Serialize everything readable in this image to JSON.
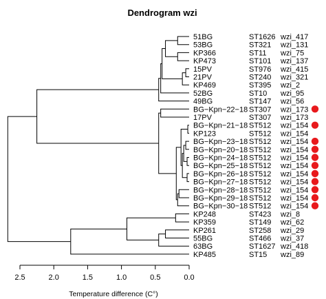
{
  "chart_data": {
    "type": "dendrogram",
    "title": "Dendrogram wzi",
    "xlabel": "Temperature difference (C°)",
    "xlim": [
      2.5,
      0.0
    ],
    "x_ticks": [
      "2.5",
      "2.0",
      "1.5",
      "1.0",
      "0.5",
      "0.0"
    ],
    "x_tick_values": [
      2.5,
      2.0,
      1.5,
      1.0,
      0.5,
      0.0
    ],
    "marker_color": "#e8191c",
    "leaves": [
      {
        "name": "51BG",
        "st": "ST1626",
        "wzi": "wzi_417",
        "marked": false
      },
      {
        "name": "53BG",
        "st": "ST321",
        "wzi": "wzi_131",
        "marked": false
      },
      {
        "name": "KP366",
        "st": "ST11",
        "wzi": "wzi_75",
        "marked": false
      },
      {
        "name": "KP473",
        "st": "ST101",
        "wzi": "wzi_137",
        "marked": false
      },
      {
        "name": "15PV",
        "st": "ST976",
        "wzi": "wzi_415",
        "marked": false
      },
      {
        "name": "21PV",
        "st": "ST240",
        "wzi": "wzi_321",
        "marked": false
      },
      {
        "name": "KP469",
        "st": "ST395",
        "wzi": "wzi_2",
        "marked": false
      },
      {
        "name": "52BG",
        "st": "ST10",
        "wzi": "wzi_95",
        "marked": false
      },
      {
        "name": "49BG",
        "st": "ST147",
        "wzi": "wzi_56",
        "marked": false
      },
      {
        "name": "BG−Kpn−22−18",
        "st": "ST307",
        "wzi": "wzi_173",
        "marked": true
      },
      {
        "name": "17PV",
        "st": "ST307",
        "wzi": "wzi_173",
        "marked": false
      },
      {
        "name": "BG−Kpn−21−18",
        "st": "ST512",
        "wzi": "wzi_154",
        "marked": true
      },
      {
        "name": "KP123",
        "st": "ST512",
        "wzi": "wzi_154",
        "marked": false
      },
      {
        "name": "BG−Kpn−23−18",
        "st": "ST512",
        "wzi": "wzi_154",
        "marked": true
      },
      {
        "name": "BG−Kpn−20−18",
        "st": "ST512",
        "wzi": "wzi_154",
        "marked": true
      },
      {
        "name": "BG−Kpn−24−18",
        "st": "ST512",
        "wzi": "wzi_154",
        "marked": true
      },
      {
        "name": "BG−Kpn−25−18",
        "st": "ST512",
        "wzi": "wzi_154",
        "marked": true
      },
      {
        "name": "BG−Kpn−26−18",
        "st": "ST512",
        "wzi": "wzi_154",
        "marked": true
      },
      {
        "name": "BG−Kpn−27−18",
        "st": "ST512",
        "wzi": "wzi_154",
        "marked": true
      },
      {
        "name": "BG−Kpn−28−18",
        "st": "ST512",
        "wzi": "wzi_154",
        "marked": true
      },
      {
        "name": "BG−Kpn−29−18",
        "st": "ST512",
        "wzi": "wzi_154",
        "marked": true
      },
      {
        "name": "BG−Kpn−30−18",
        "st": "ST512",
        "wzi": "wzi_154",
        "marked": true
      },
      {
        "name": "KP248",
        "st": "ST423",
        "wzi": "wzi_8",
        "marked": false
      },
      {
        "name": "KP359",
        "st": "ST149",
        "wzi": "wzi_62",
        "marked": false
      },
      {
        "name": "KP261",
        "st": "ST258",
        "wzi": "wzi_29",
        "marked": false
      },
      {
        "name": "55BG",
        "st": "ST466",
        "wzi": "wzi_37",
        "marked": false
      },
      {
        "name": "63BG",
        "st": "ST1627",
        "wzi": "wzi_418",
        "marked": false
      },
      {
        "name": "KP485",
        "st": "ST15",
        "wzi": "wzi_89",
        "marked": false
      }
    ],
    "merges": [
      {
        "a": "L0",
        "b": "L1",
        "h": 0.17
      },
      {
        "a": "L2",
        "b": "L3",
        "h": 0.17
      },
      {
        "a": "M0",
        "b": "M1",
        "h": 0.35
      },
      {
        "a": "L4",
        "b": "L5",
        "h": 0.05
      },
      {
        "a": "M3",
        "b": "L6",
        "h": 0.1
      },
      {
        "a": "M2",
        "b": "M4",
        "h": 0.4
      },
      {
        "a": "M5",
        "b": "L7",
        "h": 0.42
      },
      {
        "a": "M6",
        "b": "L8",
        "h": 0.45
      },
      {
        "a": "L9",
        "b": "L10",
        "h": 0.42
      },
      {
        "a": "L11",
        "b": "L12",
        "h": 0.02
      },
      {
        "a": "L13",
        "b": "L14",
        "h": 0.05
      },
      {
        "a": "L15",
        "b": "L16",
        "h": 0.03
      },
      {
        "a": "M10",
        "b": "M11",
        "h": 0.08
      },
      {
        "a": "L17",
        "b": "L18",
        "h": 0.03
      },
      {
        "a": "M12",
        "b": "M13",
        "h": 0.1
      },
      {
        "a": "M9",
        "b": "M14",
        "h": 0.12
      },
      {
        "a": "L19",
        "b": "L20",
        "h": 0.15
      },
      {
        "a": "M16",
        "b": "L21",
        "h": 0.17
      },
      {
        "a": "M15",
        "b": "M17",
        "h": 0.19
      },
      {
        "a": "M8",
        "b": "M18",
        "h": 0.45
      },
      {
        "a": "M7",
        "b": "M19",
        "h": 2.25
      },
      {
        "a": "L22",
        "b": "L23",
        "h": 0.2
      },
      {
        "a": "L24",
        "b": "L25",
        "h": 0.35
      },
      {
        "a": "M22",
        "b": "L26",
        "h": 0.45
      },
      {
        "a": "M21",
        "b": "M23",
        "h": 0.92
      },
      {
        "a": "M24",
        "b": "L27",
        "h": 1.75
      },
      {
        "a": "M20",
        "b": "M25",
        "h": 2.68
      }
    ]
  }
}
